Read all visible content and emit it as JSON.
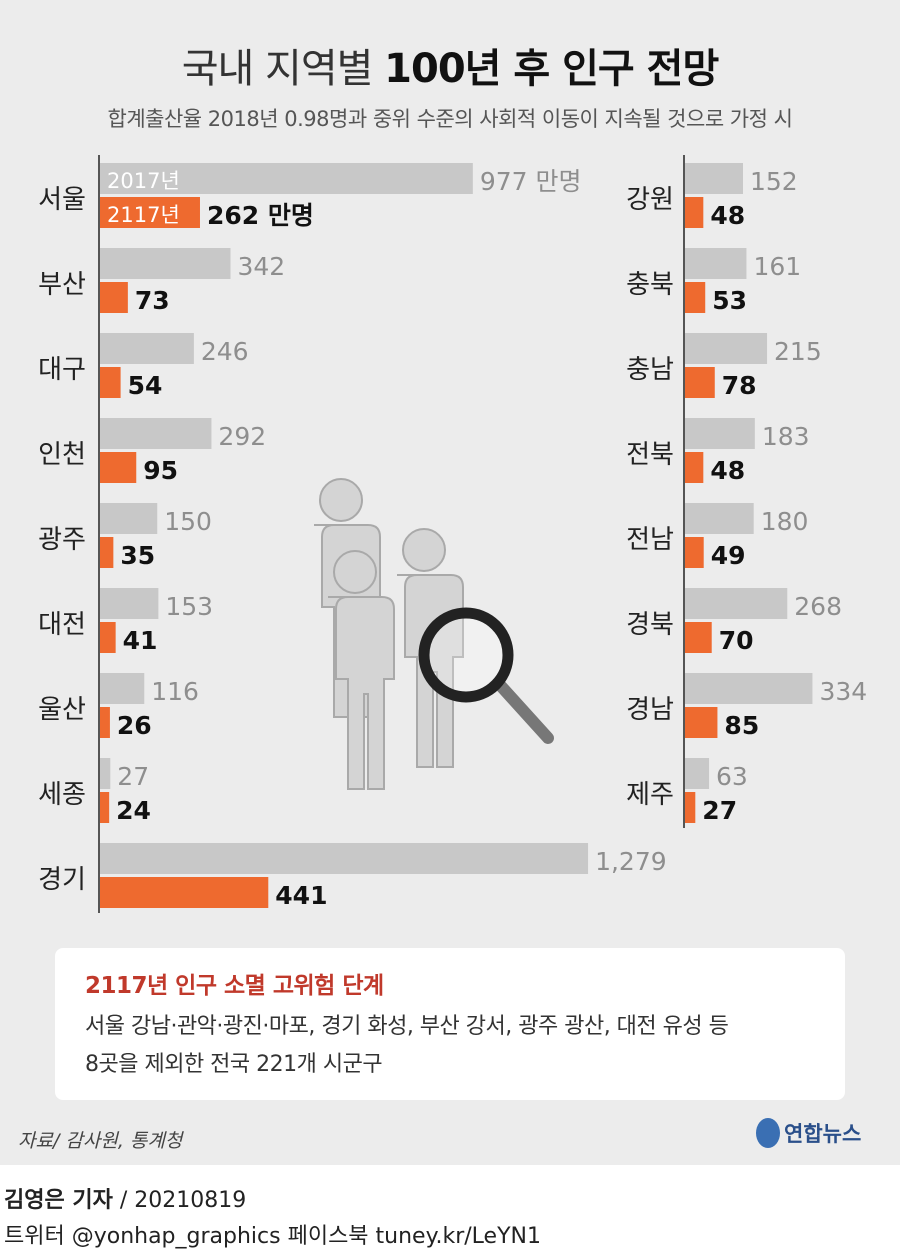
{
  "header": {
    "title_plain": "국내 지역별 ",
    "title_bold": "100년 후 인구 전망",
    "subtitle": "합계출산율 2018년 0.98명과 중위 수준의 사회적 이동이 지속될 것으로 가정 시"
  },
  "chart_data": {
    "type": "bar",
    "orientation": "horizontal",
    "unit": "만명",
    "series": [
      {
        "name": "2017년",
        "color": "#c8c8c8"
      },
      {
        "name": "2117년",
        "color": "#ee6a2f"
      }
    ],
    "left": [
      {
        "region": "서울",
        "v2017": 977,
        "v2117": 262,
        "label2017": "977",
        "label2117": "262"
      },
      {
        "region": "부산",
        "v2017": 342,
        "v2117": 73,
        "label2017": "342",
        "label2117": "73"
      },
      {
        "region": "대구",
        "v2017": 246,
        "v2117": 54,
        "label2017": "246",
        "label2117": "54"
      },
      {
        "region": "인천",
        "v2017": 292,
        "v2117": 95,
        "label2017": "292",
        "label2117": "95"
      },
      {
        "region": "광주",
        "v2017": 150,
        "v2117": 35,
        "label2017": "150",
        "label2117": "35"
      },
      {
        "region": "대전",
        "v2017": 153,
        "v2117": 41,
        "label2017": "153",
        "label2117": "41"
      },
      {
        "region": "울산",
        "v2017": 116,
        "v2117": 26,
        "label2017": "116",
        "label2117": "26"
      },
      {
        "region": "세종",
        "v2017": 27,
        "v2117": 24,
        "label2017": "27",
        "label2117": "24"
      },
      {
        "region": "경기",
        "v2017": 1279,
        "v2117": 441,
        "label2017": "1,279",
        "label2117": "441"
      }
    ],
    "right": [
      {
        "region": "강원",
        "v2017": 152,
        "v2117": 48,
        "label2017": "152",
        "label2117": "48"
      },
      {
        "region": "충북",
        "v2017": 161,
        "v2117": 53,
        "label2017": "161",
        "label2117": "53"
      },
      {
        "region": "충남",
        "v2017": 215,
        "v2117": 78,
        "label2017": "215",
        "label2117": "78"
      },
      {
        "region": "전북",
        "v2017": 183,
        "v2117": 48,
        "label2017": "183",
        "label2117": "48"
      },
      {
        "region": "전남",
        "v2017": 180,
        "v2117": 49,
        "label2017": "180",
        "label2117": "49"
      },
      {
        "region": "경북",
        "v2017": 268,
        "v2117": 70,
        "label2017": "268",
        "label2117": "70"
      },
      {
        "region": "경남",
        "v2017": 334,
        "v2117": 85,
        "label2017": "334",
        "label2117": "85"
      },
      {
        "region": "제주",
        "v2017": 63,
        "v2117": 27,
        "label2017": "63",
        "label2117": "27"
      }
    ]
  },
  "infobox": {
    "title": "2117년 인구 소멸 고위험 단계",
    "line1": "서울 강남·관악·광진·마포, 경기 화성, 부산 강서, 광주 광산, 대전 유성 등",
    "line2": "8곳을 제외한 전국 221개 시군구"
  },
  "footer": {
    "source": "자료/ 감사원, 통계청",
    "logo_text": "연합뉴스",
    "reporter": "김영은 기자",
    "date": " / 20210819",
    "social": "트위터 @yonhap_graphics  페이스북 tuney.kr/LeYN1"
  },
  "illustration": {
    "icon": "people-magnifier-icon"
  }
}
